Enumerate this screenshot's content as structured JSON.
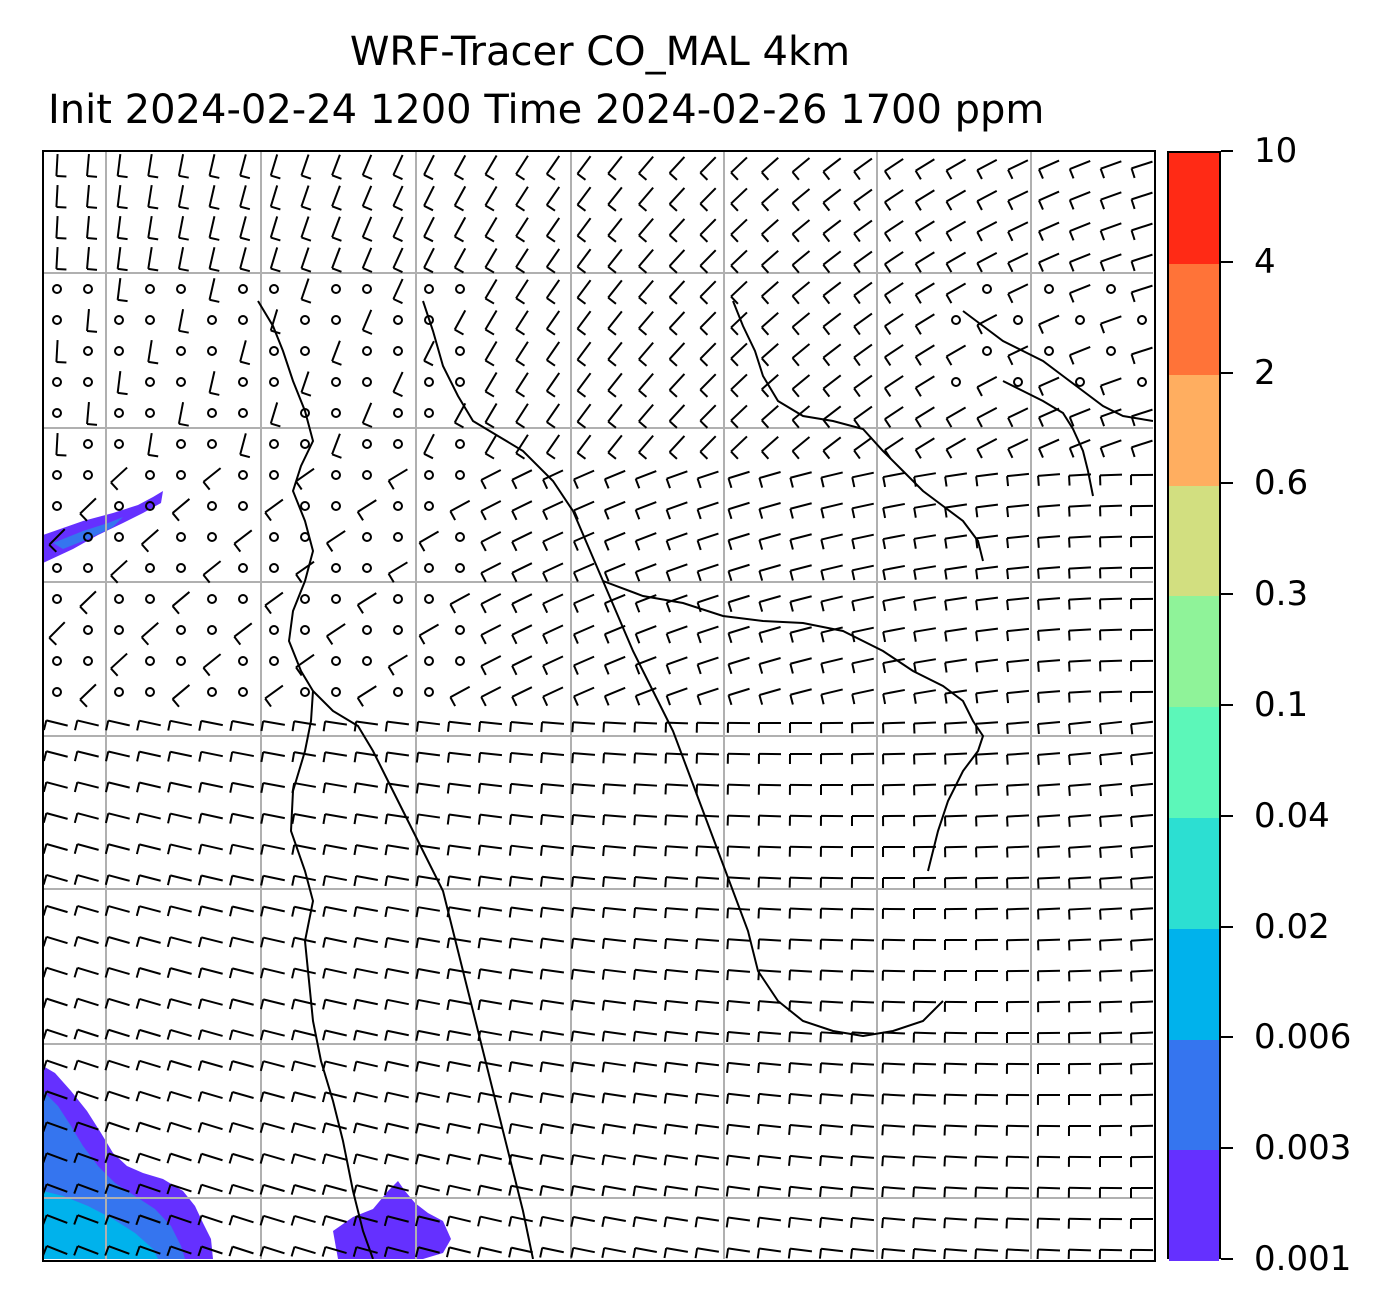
{
  "title": {
    "line1": "WRF-Tracer CO_MAL 4km",
    "line2": "Init 2024-02-24 1200 Time 2024-02-26 1700 ppm"
  },
  "map": {
    "field": "CO_MAL tracer concentration",
    "units": "ppm",
    "overlay": "wind barbs",
    "gridlines": true,
    "coastlines": true,
    "shaded_regions": [
      {
        "location": "left edge, upper-middle",
        "level": "0.001-0.003"
      },
      {
        "location": "bottom-left corner",
        "level": "0.001-0.006"
      },
      {
        "location": "bottom-center",
        "level": "0.001-0.003"
      }
    ]
  },
  "colorbar": {
    "levels": [
      "0.001",
      "0.003",
      "0.006",
      "0.02",
      "0.04",
      "0.1",
      "0.3",
      "0.6",
      "2",
      "4",
      "10"
    ],
    "colors": [
      "#6530ff",
      "#3575ef",
      "#00b2ec",
      "#2cdfd2",
      "#5cf7b9",
      "#8ff399",
      "#d2df80",
      "#ffae60",
      "#ff7338",
      "#ff2a15"
    ]
  }
}
